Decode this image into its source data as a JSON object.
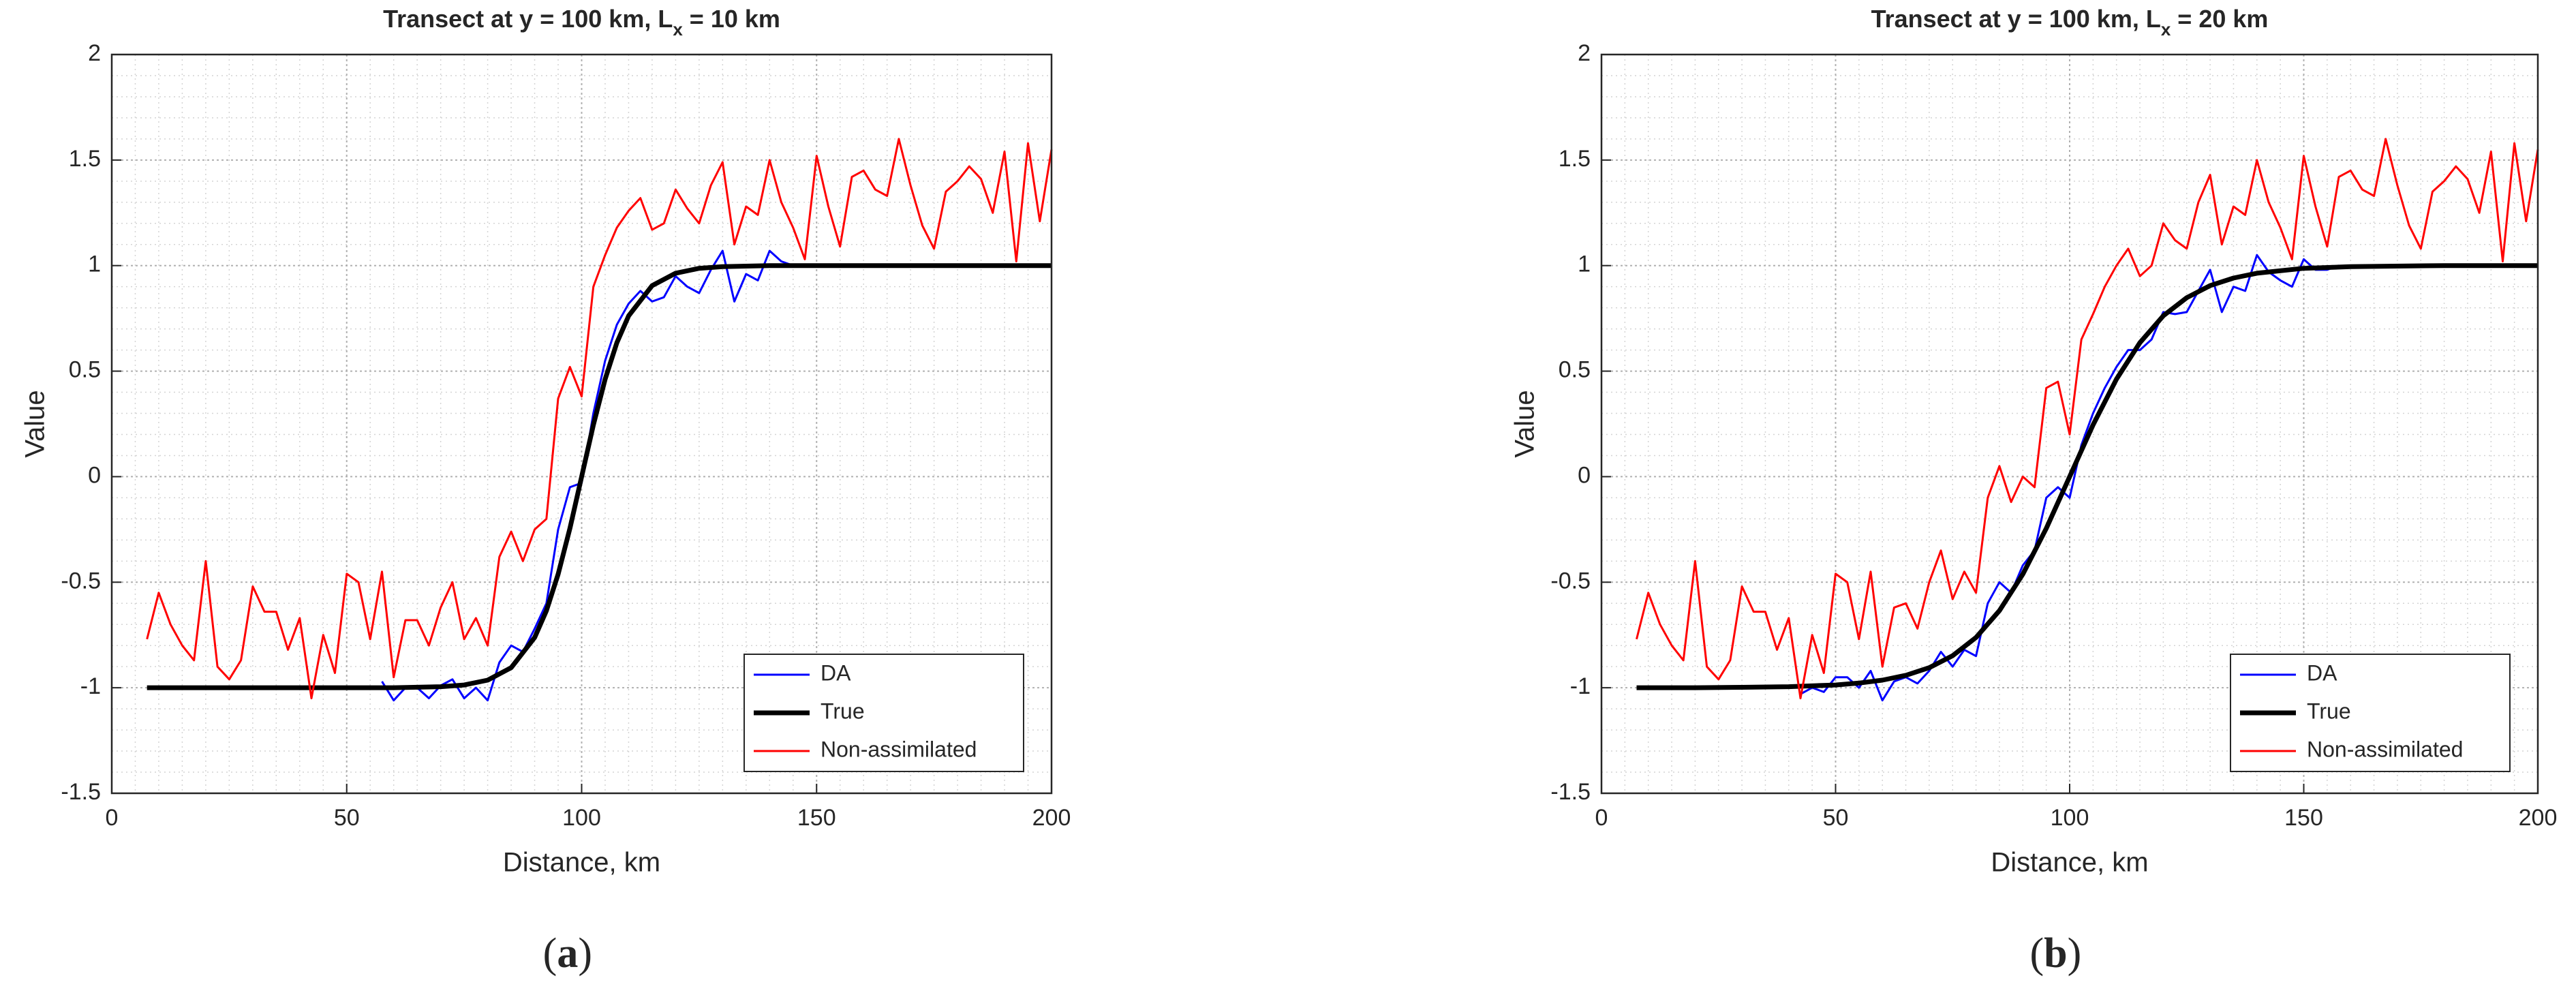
{
  "chart_data": [
    {
      "type": "line",
      "title": "Transect at y = 100 km, L",
      "title_subscript": "x",
      "title_suffix": " = 10 km",
      "xlabel": "Distance, km",
      "ylabel": "Value",
      "xlim": [
        0,
        200
      ],
      "ylim": [
        -1.5,
        2
      ],
      "xticks": [
        0,
        50,
        100,
        150,
        200
      ],
      "yticks": [
        -1.5,
        -1,
        -0.5,
        0,
        0.5,
        1,
        1.5,
        2
      ],
      "grid": true,
      "minor_grid": true,
      "legend": "lower right",
      "caption": {
        "open": "(",
        "label": "a",
        "close": ")"
      },
      "series": [
        {
          "name": "DA",
          "color": "#0000ff",
          "x": [
            57.5,
            60,
            62.5,
            65,
            67.5,
            70,
            72.5,
            75,
            77.5,
            80,
            82.5,
            85,
            87.5,
            90,
            92.5,
            95,
            97.5,
            100,
            102.5,
            105,
            107.5,
            110,
            112.5,
            115,
            117.5,
            120,
            122.5,
            125,
            127.5,
            130,
            132.5,
            135,
            137.5,
            140,
            142.5,
            145
          ],
          "values": [
            -0.97,
            -1.06,
            -1.0,
            -1.0,
            -1.05,
            -0.99,
            -0.96,
            -1.05,
            -1.0,
            -1.06,
            -0.88,
            -0.8,
            -0.83,
            -0.72,
            -0.6,
            -0.25,
            -0.05,
            -0.03,
            0.3,
            0.55,
            0.72,
            0.82,
            0.88,
            0.83,
            0.85,
            0.95,
            0.9,
            0.87,
            0.98,
            1.07,
            0.83,
            0.96,
            0.93,
            1.07,
            1.02,
            1.0
          ]
        },
        {
          "name": "True",
          "color": "#000000",
          "x": [
            7.5,
            10,
            20,
            30,
            40,
            50,
            60,
            70,
            75,
            80,
            85,
            90,
            92.5,
            95,
            97.5,
            100,
            102.5,
            105,
            107.5,
            110,
            115,
            120,
            125,
            130,
            140,
            150,
            160,
            180,
            200
          ],
          "values": [
            -1.0,
            -1.0,
            -1.0,
            -1.0,
            -1.0,
            -1.0,
            -1.0,
            -0.995,
            -0.987,
            -0.964,
            -0.905,
            -0.762,
            -0.635,
            -0.462,
            -0.245,
            0,
            0.245,
            0.462,
            0.635,
            0.762,
            0.905,
            0.964,
            0.987,
            0.995,
            1.0,
            1.0,
            1.0,
            1.0,
            1.0
          ]
        },
        {
          "name": "Non-assimilated",
          "color": "#ff0000",
          "x": [
            7.5,
            10,
            12.5,
            15,
            17.5,
            20,
            22.5,
            25,
            27.5,
            30,
            32.5,
            35,
            37.5,
            40,
            42.5,
            45,
            47.5,
            50,
            52.5,
            55,
            57.5,
            60,
            62.5,
            65,
            67.5,
            70,
            72.5,
            75,
            77.5,
            80,
            82.5,
            85,
            87.5,
            90,
            92.5,
            95,
            97.5,
            100,
            102.5,
            105,
            107.5,
            110,
            112.5,
            115,
            117.5,
            120,
            122.5,
            125,
            127.5,
            130,
            132.5,
            135,
            137.5,
            140,
            142.5,
            145,
            147.5,
            150,
            152.5,
            155,
            157.5,
            160,
            162.5,
            165,
            167.5,
            170,
            172.5,
            175,
            177.5,
            180,
            182.5,
            185,
            187.5,
            190,
            192.5,
            195,
            197.5,
            200
          ],
          "values": [
            -0.77,
            -0.55,
            -0.7,
            -0.8,
            -0.87,
            -0.4,
            -0.9,
            -0.96,
            -0.87,
            -0.52,
            -0.64,
            -0.64,
            -0.82,
            -0.67,
            -1.05,
            -0.75,
            -0.93,
            -0.46,
            -0.5,
            -0.77,
            -0.45,
            -0.95,
            -0.68,
            -0.68,
            -0.8,
            -0.62,
            -0.5,
            -0.77,
            -0.67,
            -0.8,
            -0.38,
            -0.26,
            -0.4,
            -0.25,
            -0.2,
            0.37,
            0.52,
            0.38,
            0.9,
            1.05,
            1.18,
            1.26,
            1.32,
            1.17,
            1.2,
            1.36,
            1.27,
            1.2,
            1.38,
            1.49,
            1.1,
            1.28,
            1.24,
            1.5,
            1.3,
            1.18,
            1.03,
            1.52,
            1.28,
            1.09,
            1.42,
            1.45,
            1.36,
            1.33,
            1.6,
            1.38,
            1.19,
            1.08,
            1.35,
            1.4,
            1.47,
            1.41,
            1.25,
            1.54,
            1.02,
            1.58,
            1.21,
            1.55
          ]
        }
      ]
    },
    {
      "type": "line",
      "title": "Transect at y = 100 km, L",
      "title_subscript": "x",
      "title_suffix": " = 20 km",
      "xlabel": "Distance, km",
      "ylabel": "Value",
      "xlim": [
        0,
        200
      ],
      "ylim": [
        -1.5,
        2
      ],
      "xticks": [
        0,
        50,
        100,
        150,
        200
      ],
      "yticks": [
        -1.5,
        -1,
        -0.5,
        0,
        0.5,
        1,
        1.5,
        2
      ],
      "grid": true,
      "minor_grid": true,
      "legend": "lower right",
      "caption": {
        "open": "(",
        "label": "b",
        "close": ")"
      },
      "series": [
        {
          "name": "DA",
          "color": "#0000ff",
          "x": [
            42.5,
            45,
            47.5,
            50,
            52.5,
            55,
            57.5,
            60,
            62.5,
            65,
            67.5,
            70,
            72.5,
            75,
            77.5,
            80,
            82.5,
            85,
            87.5,
            90,
            92.5,
            95,
            97.5,
            100,
            102.5,
            105,
            107.5,
            110,
            112.5,
            115,
            117.5,
            120,
            122.5,
            125,
            127.5,
            130,
            132.5,
            135,
            137.5,
            140,
            142.5,
            145,
            147.5,
            150,
            152.5,
            155,
            157.5
          ],
          "values": [
            -1.03,
            -1.0,
            -1.02,
            -0.95,
            -0.95,
            -1.0,
            -0.92,
            -1.06,
            -0.97,
            -0.95,
            -0.98,
            -0.92,
            -0.83,
            -0.9,
            -0.82,
            -0.85,
            -0.6,
            -0.5,
            -0.55,
            -0.42,
            -0.35,
            -0.1,
            -0.05,
            -0.1,
            0.15,
            0.3,
            0.42,
            0.52,
            0.6,
            0.6,
            0.65,
            0.78,
            0.77,
            0.78,
            0.88,
            0.98,
            0.78,
            0.9,
            0.88,
            1.05,
            0.97,
            0.93,
            0.9,
            1.03,
            0.98,
            0.98,
            1.0
          ]
        },
        {
          "name": "True",
          "color": "#000000",
          "x": [
            7.5,
            20,
            30,
            40,
            50,
            55,
            60,
            65,
            70,
            75,
            80,
            85,
            90,
            95,
            100,
            105,
            110,
            115,
            120,
            125,
            130,
            135,
            140,
            150,
            160,
            180,
            200
          ],
          "values": [
            -1.0,
            -1.0,
            -0.998,
            -0.995,
            -0.987,
            -0.978,
            -0.964,
            -0.941,
            -0.905,
            -0.848,
            -0.762,
            -0.635,
            -0.462,
            -0.245,
            0,
            0.245,
            0.462,
            0.635,
            0.762,
            0.848,
            0.905,
            0.941,
            0.964,
            0.987,
            0.995,
            1.0,
            1.0
          ]
        },
        {
          "name": "Non-assimilated",
          "color": "#ff0000",
          "x": [
            7.5,
            10,
            12.5,
            15,
            17.5,
            20,
            22.5,
            25,
            27.5,
            30,
            32.5,
            35,
            37.5,
            40,
            42.5,
            45,
            47.5,
            50,
            52.5,
            55,
            57.5,
            60,
            62.5,
            65,
            67.5,
            70,
            72.5,
            75,
            77.5,
            80,
            82.5,
            85,
            87.5,
            90,
            92.5,
            95,
            97.5,
            100,
            102.5,
            105,
            107.5,
            110,
            112.5,
            115,
            117.5,
            120,
            122.5,
            125,
            127.5,
            130,
            132.5,
            135,
            137.5,
            140,
            142.5,
            145,
            147.5,
            150,
            152.5,
            155,
            157.5,
            160,
            162.5,
            165,
            167.5,
            170,
            172.5,
            175,
            177.5,
            180,
            182.5,
            185,
            187.5,
            190,
            192.5,
            195,
            197.5,
            200
          ],
          "values": [
            -0.77,
            -0.55,
            -0.7,
            -0.8,
            -0.87,
            -0.4,
            -0.9,
            -0.96,
            -0.87,
            -0.52,
            -0.64,
            -0.64,
            -0.82,
            -0.67,
            -1.05,
            -0.75,
            -0.93,
            -0.46,
            -0.5,
            -0.77,
            -0.45,
            -0.9,
            -0.62,
            -0.6,
            -0.72,
            -0.5,
            -0.35,
            -0.58,
            -0.45,
            -0.55,
            -0.1,
            0.05,
            -0.12,
            0,
            -0.05,
            0.42,
            0.45,
            0.2,
            0.65,
            0.77,
            0.9,
            1.0,
            1.08,
            0.95,
            1.0,
            1.2,
            1.12,
            1.08,
            1.3,
            1.43,
            1.1,
            1.28,
            1.24,
            1.5,
            1.3,
            1.18,
            1.03,
            1.52,
            1.28,
            1.09,
            1.42,
            1.45,
            1.36,
            1.33,
            1.6,
            1.38,
            1.19,
            1.08,
            1.35,
            1.4,
            1.47,
            1.41,
            1.25,
            1.54,
            1.02,
            1.58,
            1.21,
            1.55
          ]
        }
      ]
    }
  ]
}
